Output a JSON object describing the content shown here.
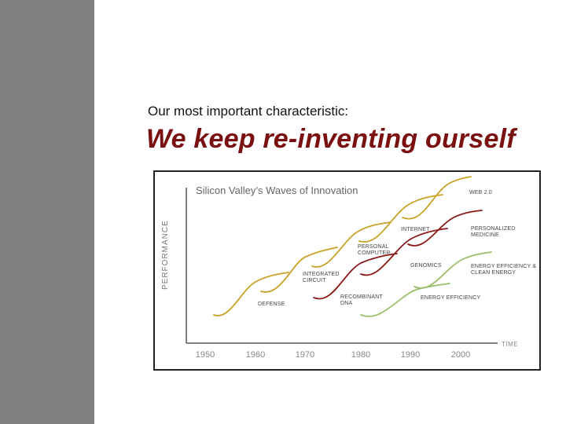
{
  "slide": {
    "subtitle": "Our most important characteristic:",
    "headline": "We keep re-inventing ourself",
    "headline_color": "#7a1010",
    "sidebar_color": "#7f7f7f"
  },
  "figure": {
    "title": "Silicon Valley’s Waves of Innovation",
    "y_axis_label": "PERFORMANCE",
    "x_axis_label": "TIME",
    "x_ticks": [
      "1950",
      "1960",
      "1970",
      "1980",
      "1990",
      "2000"
    ],
    "wave_colors": {
      "gold": "#c9a227",
      "dark_red": "#8b1a1a",
      "green": "#9cbf6a"
    },
    "waves": [
      {
        "id": "defense",
        "label": [
          "DEFENSE"
        ],
        "color": "gold"
      },
      {
        "id": "integrated-circuit",
        "label": [
          "INTEGRATED",
          "CIRCUIT"
        ],
        "color": "gold"
      },
      {
        "id": "personal-computer",
        "label": [
          "PERSONAL",
          "COMPUTER"
        ],
        "color": "gold"
      },
      {
        "id": "internet",
        "label": [
          "INTERNET"
        ],
        "color": "gold"
      },
      {
        "id": "web-20",
        "label": [
          "WEB 2.0"
        ],
        "color": "gold"
      },
      {
        "id": "recombinant-dna",
        "label": [
          "RECOMBINANT",
          "DNA"
        ],
        "color": "dark_red"
      },
      {
        "id": "genomics",
        "label": [
          "GENOMICS"
        ],
        "color": "dark_red"
      },
      {
        "id": "personalized-medicine",
        "label": [
          "PERSONALIZED",
          "MEDICINE"
        ],
        "color": "dark_red"
      },
      {
        "id": "energy-efficiency",
        "label": [
          "ENERGY EFFICIENCY"
        ],
        "color": "green"
      },
      {
        "id": "energy-clean",
        "label": [
          "ENERGY EFFICIENCY &",
          "CLEAN ENERGY"
        ],
        "color": "green"
      }
    ]
  }
}
